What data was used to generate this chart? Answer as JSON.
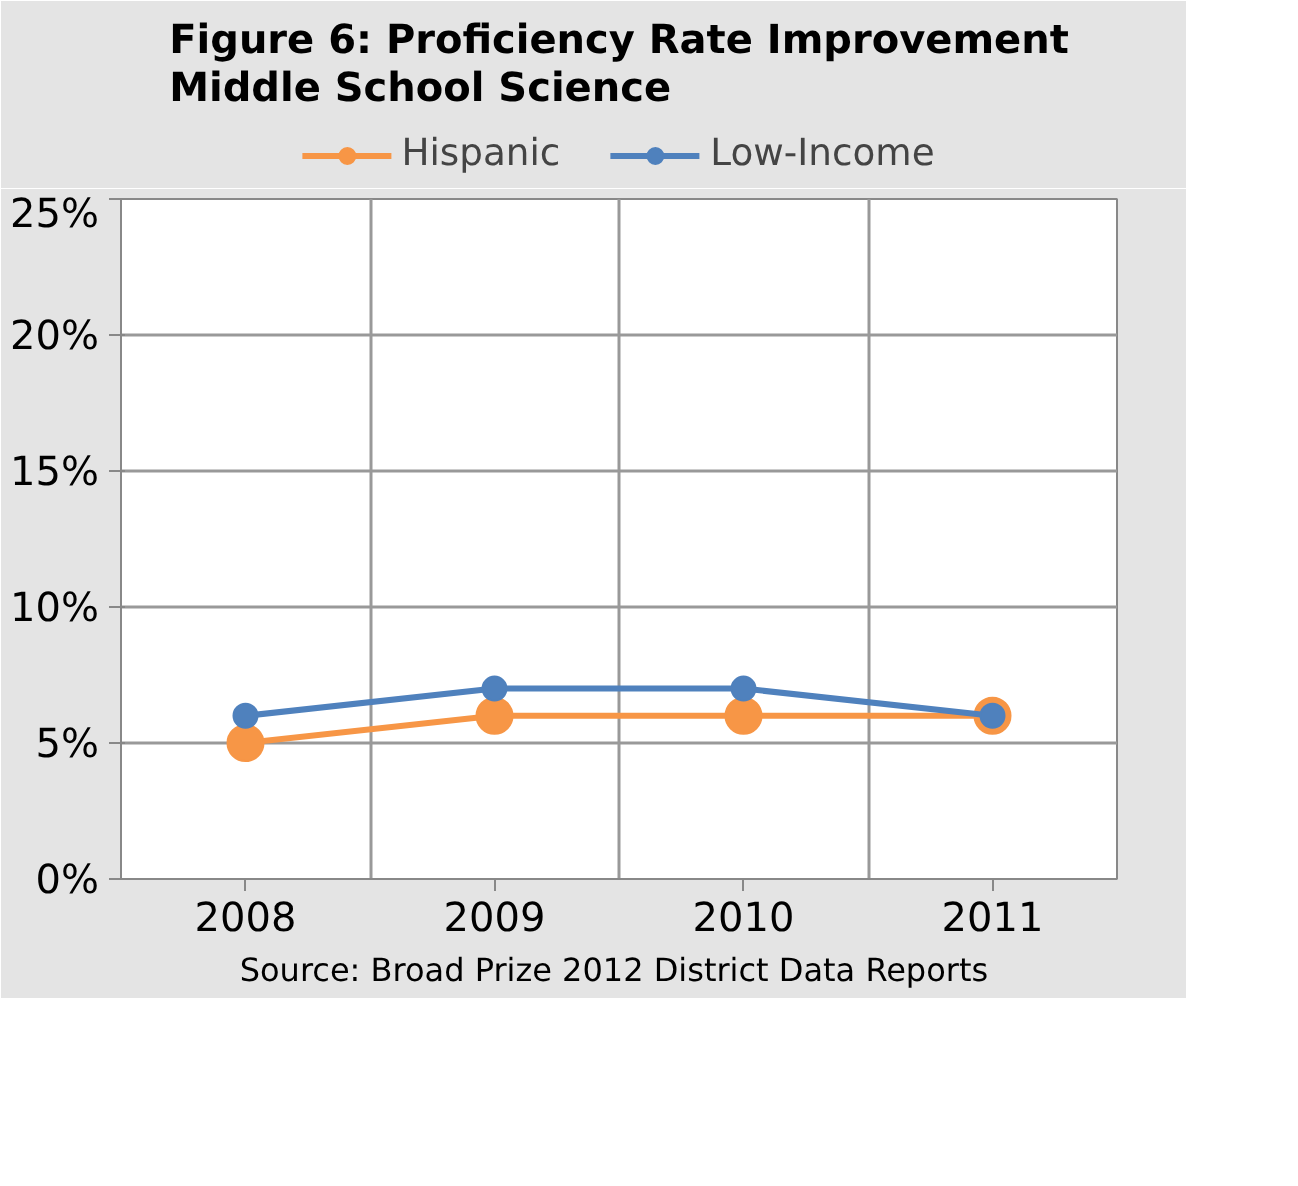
{
  "chart_data": {
    "type": "line",
    "title": "Figure 6: Proficiency Rate Improvement\nMiddle School Science",
    "categories": [
      "2008",
      "2009",
      "2010",
      "2011"
    ],
    "series": [
      {
        "name": "Hispanic",
        "color": "#f79646",
        "values": [
          5,
          6,
          6,
          6
        ]
      },
      {
        "name": "Low-Income",
        "color": "#4f81bd",
        "values": [
          6,
          7,
          7,
          6
        ]
      }
    ],
    "ylim": [
      0,
      25
    ],
    "yticks": [
      {
        "value": 0,
        "label": "0%"
      },
      {
        "value": 5,
        "label": "5%"
      },
      {
        "value": 10,
        "label": "10%"
      },
      {
        "value": 15,
        "label": "15%"
      },
      {
        "value": 20,
        "label": "20%"
      },
      {
        "value": 25,
        "label": "25%"
      }
    ],
    "grid": true,
    "legend": "top",
    "marker": "circle",
    "line_style": "solid",
    "annotations": [
      "Source:  Broad Prize 2012 District Data Reports"
    ]
  }
}
